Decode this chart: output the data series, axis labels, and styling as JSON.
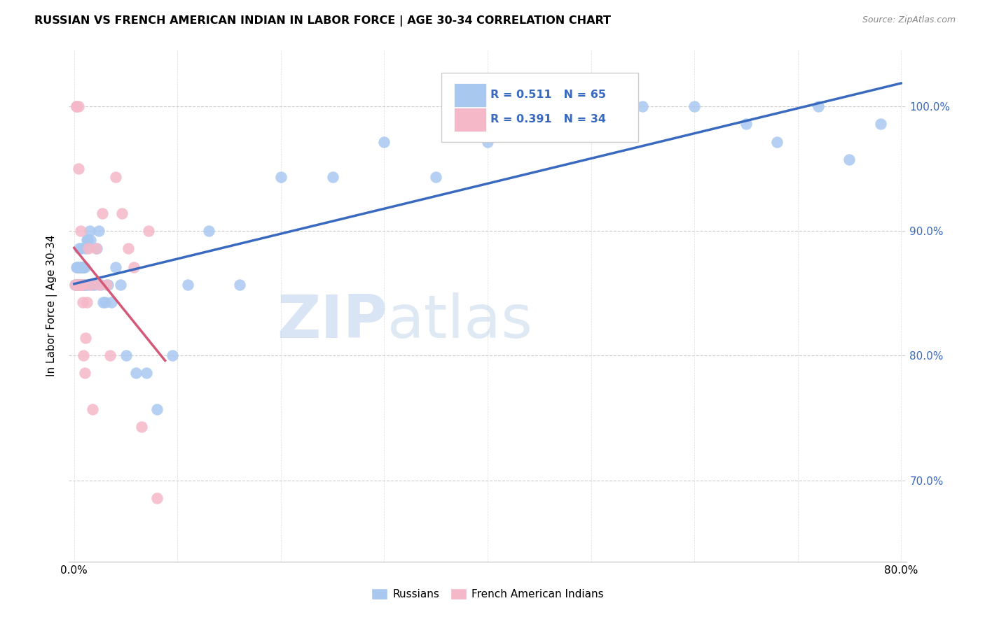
{
  "title": "RUSSIAN VS FRENCH AMERICAN INDIAN IN LABOR FORCE | AGE 30-34 CORRELATION CHART",
  "source": "Source: ZipAtlas.com",
  "ylabel": "In Labor Force | Age 30-34",
  "watermark_zip": "ZIP",
  "watermark_atlas": "atlas",
  "legend_blue": {
    "R": "0.511",
    "N": "65",
    "label": "Russians"
  },
  "legend_pink": {
    "R": "0.391",
    "N": "34",
    "label": "French American Indians"
  },
  "blue_scatter_color": "#a8c8f0",
  "pink_scatter_color": "#f5b8c8",
  "blue_line_color": "#3a6abf",
  "pink_line_color": "#d45878",
  "xmin": 0.0,
  "xmax": 0.8,
  "ymin": 0.635,
  "ymax": 1.045,
  "yticks": [
    0.7,
    0.8,
    0.9,
    1.0
  ],
  "ytick_labels": [
    "70.0%",
    "80.0%",
    "90.0%",
    "100.0%"
  ],
  "russians_x": [
    0.001,
    0.002,
    0.002,
    0.003,
    0.003,
    0.003,
    0.004,
    0.004,
    0.004,
    0.005,
    0.005,
    0.005,
    0.006,
    0.006,
    0.006,
    0.007,
    0.007,
    0.007,
    0.008,
    0.008,
    0.008,
    0.009,
    0.009,
    0.01,
    0.01,
    0.011,
    0.011,
    0.012,
    0.013,
    0.014,
    0.015,
    0.016,
    0.018,
    0.02,
    0.022,
    0.024,
    0.026,
    0.028,
    0.03,
    0.033,
    0.036,
    0.04,
    0.045,
    0.05,
    0.06,
    0.07,
    0.08,
    0.095,
    0.11,
    0.13,
    0.16,
    0.2,
    0.25,
    0.3,
    0.35,
    0.4,
    0.45,
    0.5,
    0.55,
    0.6,
    0.65,
    0.68,
    0.72,
    0.75,
    0.78
  ],
  "russians_y": [
    0.857,
    0.857,
    0.871,
    0.857,
    0.871,
    0.857,
    0.857,
    0.871,
    0.857,
    0.857,
    0.871,
    0.886,
    0.857,
    0.871,
    0.857,
    0.857,
    0.871,
    0.886,
    0.857,
    0.871,
    0.857,
    0.871,
    0.857,
    0.857,
    0.871,
    0.857,
    0.886,
    0.893,
    0.893,
    0.857,
    0.9,
    0.893,
    0.857,
    0.857,
    0.886,
    0.9,
    0.857,
    0.843,
    0.843,
    0.857,
    0.843,
    0.871,
    0.857,
    0.8,
    0.786,
    0.786,
    0.757,
    0.8,
    0.857,
    0.9,
    0.857,
    0.943,
    0.943,
    0.971,
    0.943,
    0.971,
    0.986,
    0.986,
    1.0,
    1.0,
    0.986,
    0.971,
    1.0,
    0.957,
    0.986
  ],
  "french_x": [
    0.001,
    0.002,
    0.002,
    0.003,
    0.003,
    0.004,
    0.004,
    0.005,
    0.005,
    0.006,
    0.006,
    0.007,
    0.007,
    0.008,
    0.008,
    0.009,
    0.01,
    0.011,
    0.012,
    0.014,
    0.016,
    0.018,
    0.021,
    0.024,
    0.027,
    0.031,
    0.035,
    0.04,
    0.046,
    0.052,
    0.058,
    0.065,
    0.072,
    0.08
  ],
  "french_y": [
    0.857,
    1.0,
    1.0,
    0.857,
    0.857,
    0.95,
    1.0,
    0.857,
    0.857,
    0.857,
    0.9,
    0.857,
    0.857,
    0.843,
    0.857,
    0.8,
    0.786,
    0.814,
    0.843,
    0.886,
    0.857,
    0.757,
    0.886,
    0.857,
    0.914,
    0.857,
    0.8,
    0.943,
    0.914,
    0.886,
    0.871,
    0.743,
    0.9,
    0.686
  ]
}
